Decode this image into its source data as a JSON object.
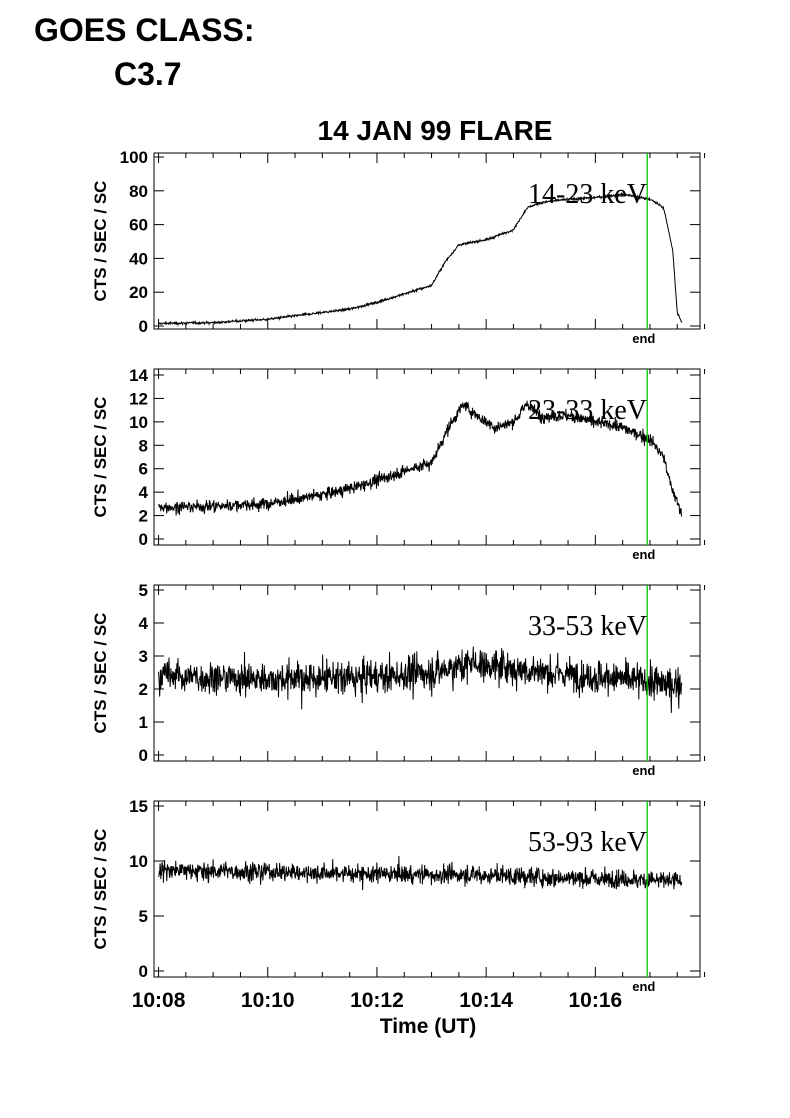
{
  "header": {
    "goes_class_label": "GOES CLASS:",
    "goes_class_value": "C3.7"
  },
  "chart_data": {
    "type": "line",
    "title": "14 JAN 99 FLARE",
    "xlabel": "Time (UT)",
    "x_unit": "minutes",
    "xlim": [
      "10:07:55",
      "10:17:55"
    ],
    "x_ticks": [
      "10:08",
      "10:10",
      "10:12",
      "10:14",
      "10:16"
    ],
    "end_marker": {
      "time": "10:16:57",
      "label": "end",
      "color": "#00cc00"
    },
    "line_color": "#000000",
    "panels": [
      {
        "ylabel": "CTS / SEC / SC",
        "band_label": "14-23 keV",
        "ylim": [
          0,
          100
        ],
        "y_ticks": [
          "0",
          "20",
          "40",
          "60",
          "80",
          "100"
        ],
        "noise": 0.6,
        "series_x": [
          "10:08:00",
          "10:09:00",
          "10:10:00",
          "10:10:30",
          "10:11:00",
          "10:11:30",
          "10:12:00",
          "10:12:30",
          "10:13:00",
          "10:13:15",
          "10:13:30",
          "10:14:00",
          "10:14:30",
          "10:14:45",
          "10:15:00",
          "10:15:30",
          "10:16:00",
          "10:16:30",
          "10:17:00",
          "10:17:15",
          "10:17:25",
          "10:17:30",
          "10:17:35"
        ],
        "series_y": [
          1.5,
          2,
          4,
          6,
          8,
          10,
          14,
          19,
          24,
          38,
          48,
          51,
          57,
          70,
          73,
          75,
          76,
          78,
          75,
          70,
          45,
          8,
          2
        ]
      },
      {
        "ylabel": "CTS / SEC / SC",
        "band_label": "23-33 keV",
        "ylim": [
          0,
          14
        ],
        "y_ticks": [
          "0",
          "2",
          "4",
          "6",
          "8",
          "10",
          "12",
          "14"
        ],
        "noise": 0.45,
        "series_x": [
          "10:08:00",
          "10:09:00",
          "10:10:00",
          "10:11:00",
          "10:11:30",
          "10:12:00",
          "10:12:30",
          "10:13:00",
          "10:13:15",
          "10:13:35",
          "10:13:50",
          "10:14:10",
          "10:14:30",
          "10:14:45",
          "10:15:00",
          "10:15:30",
          "10:16:00",
          "10:16:30",
          "10:17:00",
          "10:17:15",
          "10:17:25",
          "10:17:35"
        ],
        "series_y": [
          2.7,
          2.8,
          3,
          3.8,
          4.3,
          5,
          5.8,
          6.5,
          9,
          11.5,
          10.5,
          9.5,
          10,
          11.5,
          10.5,
          10.5,
          10,
          9.5,
          8.5,
          7,
          4,
          2.2
        ]
      },
      {
        "ylabel": "CTS / SEC / SC",
        "band_label": "33-53 keV",
        "ylim": [
          0,
          5
        ],
        "y_ticks": [
          "0",
          "1",
          "2",
          "3",
          "4",
          "5"
        ],
        "noise": 0.45,
        "series_x": [
          "10:08:00",
          "10:10:00",
          "10:12:00",
          "10:13:00",
          "10:13:45",
          "10:14:30",
          "10:15:30",
          "10:16:30",
          "10:17:35"
        ],
        "series_y": [
          2.4,
          2.3,
          2.35,
          2.5,
          2.8,
          2.6,
          2.45,
          2.3,
          2.1
        ]
      },
      {
        "ylabel": "CTS / SEC / SC",
        "band_label": "53-93 keV",
        "ylim": [
          0,
          15
        ],
        "y_ticks": [
          "0",
          "5",
          "10",
          "15"
        ],
        "noise": 0.75,
        "series_x": [
          "10:08:00",
          "10:10:00",
          "10:12:00",
          "10:14:00",
          "10:16:00",
          "10:17:35"
        ],
        "series_y": [
          9.2,
          9,
          8.8,
          8.7,
          8.4,
          8.2
        ]
      }
    ]
  }
}
